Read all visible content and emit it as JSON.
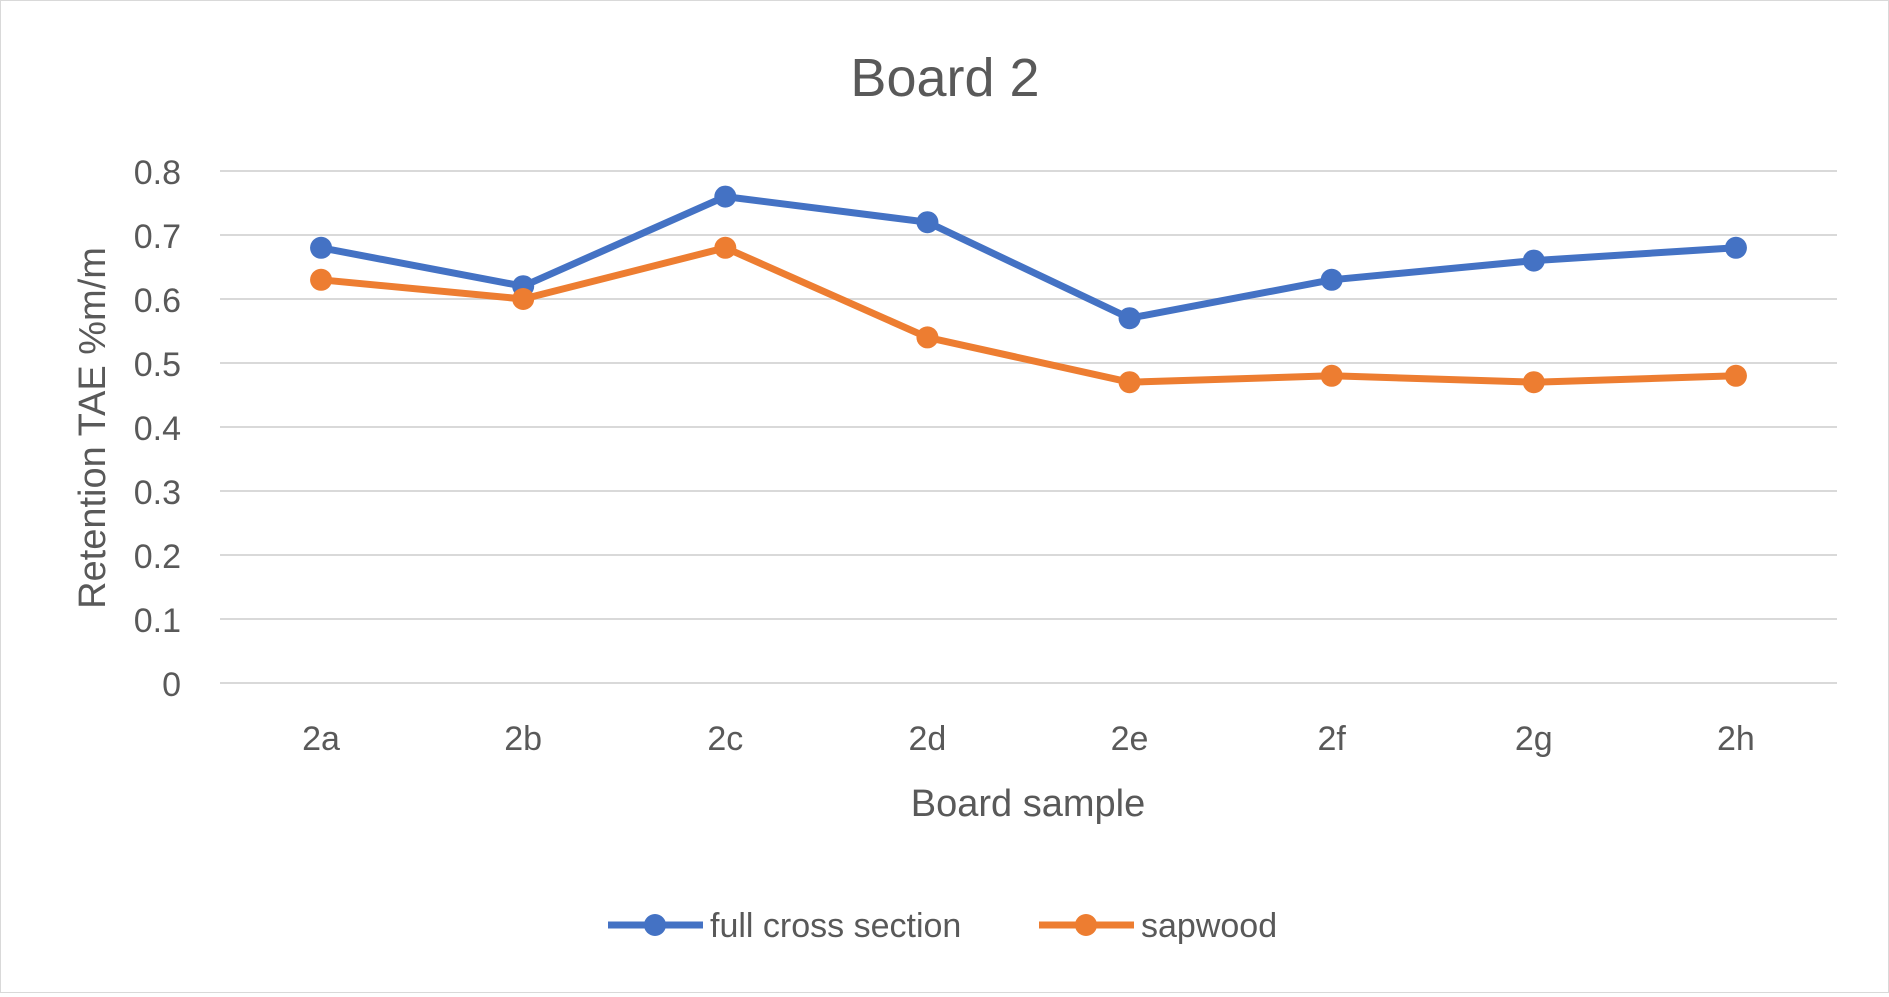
{
  "chart_data": {
    "type": "line",
    "title": "Board 2",
    "xlabel": "Board sample",
    "ylabel": "Retention TAE %m/m",
    "categories": [
      "2a",
      "2b",
      "2c",
      "2d",
      "2e",
      "2f",
      "2g",
      "2h"
    ],
    "ylim": [
      0,
      0.8
    ],
    "yticks": [
      "0",
      "0.1",
      "0.2",
      "0.3",
      "0.4",
      "0.5",
      "0.6",
      "0.7",
      "0.8"
    ],
    "grid": true,
    "legend_position": "bottom",
    "series": [
      {
        "name": "full cross section",
        "color": "#4472C4",
        "values": [
          0.68,
          0.62,
          0.76,
          0.72,
          0.57,
          0.63,
          0.66,
          0.68
        ]
      },
      {
        "name": "sapwood",
        "color": "#ED7D31",
        "values": [
          0.63,
          0.6,
          0.68,
          0.54,
          0.47,
          0.48,
          0.47,
          0.48
        ]
      }
    ]
  }
}
